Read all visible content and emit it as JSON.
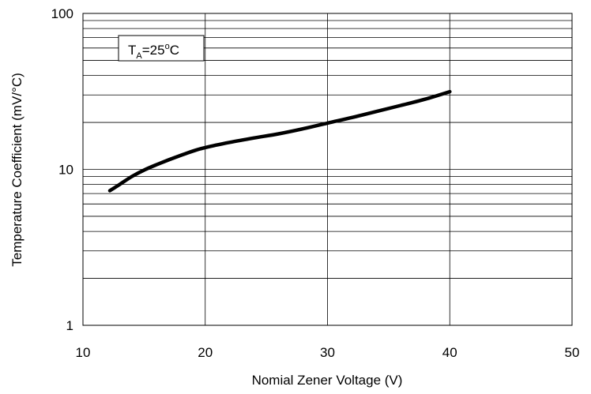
{
  "chart_data": {
    "type": "line",
    "title": "",
    "xlabel": "Nomial Zener Voltage (V)",
    "ylabel": "Temperature Coefficient (mV/°C)",
    "xlim": [
      10,
      50
    ],
    "ylim": [
      1,
      100
    ],
    "yscale": "log",
    "grid": true,
    "x_ticks": [
      "10",
      "20",
      "30",
      "40",
      "50"
    ],
    "y_ticks": [
      "1",
      "10",
      "100"
    ],
    "annotation": {
      "main": "T",
      "sub": "A",
      "eq": "=25",
      "sup": "o",
      "unit": "C"
    },
    "series": [
      {
        "x": [
          12.2,
          13,
          14,
          15,
          16,
          17,
          18,
          19,
          20,
          22,
          24,
          26,
          28,
          30,
          32,
          34,
          36,
          38,
          40
        ],
        "y": [
          7.3,
          8.0,
          9.0,
          9.9,
          10.7,
          11.5,
          12.3,
          13.1,
          13.8,
          14.9,
          15.9,
          16.9,
          18.2,
          19.8,
          21.5,
          23.5,
          25.7,
          28.2,
          31.5
        ]
      }
    ],
    "colors": {
      "line": "#000000",
      "grid": "#000000",
      "axis": "#000000"
    }
  }
}
